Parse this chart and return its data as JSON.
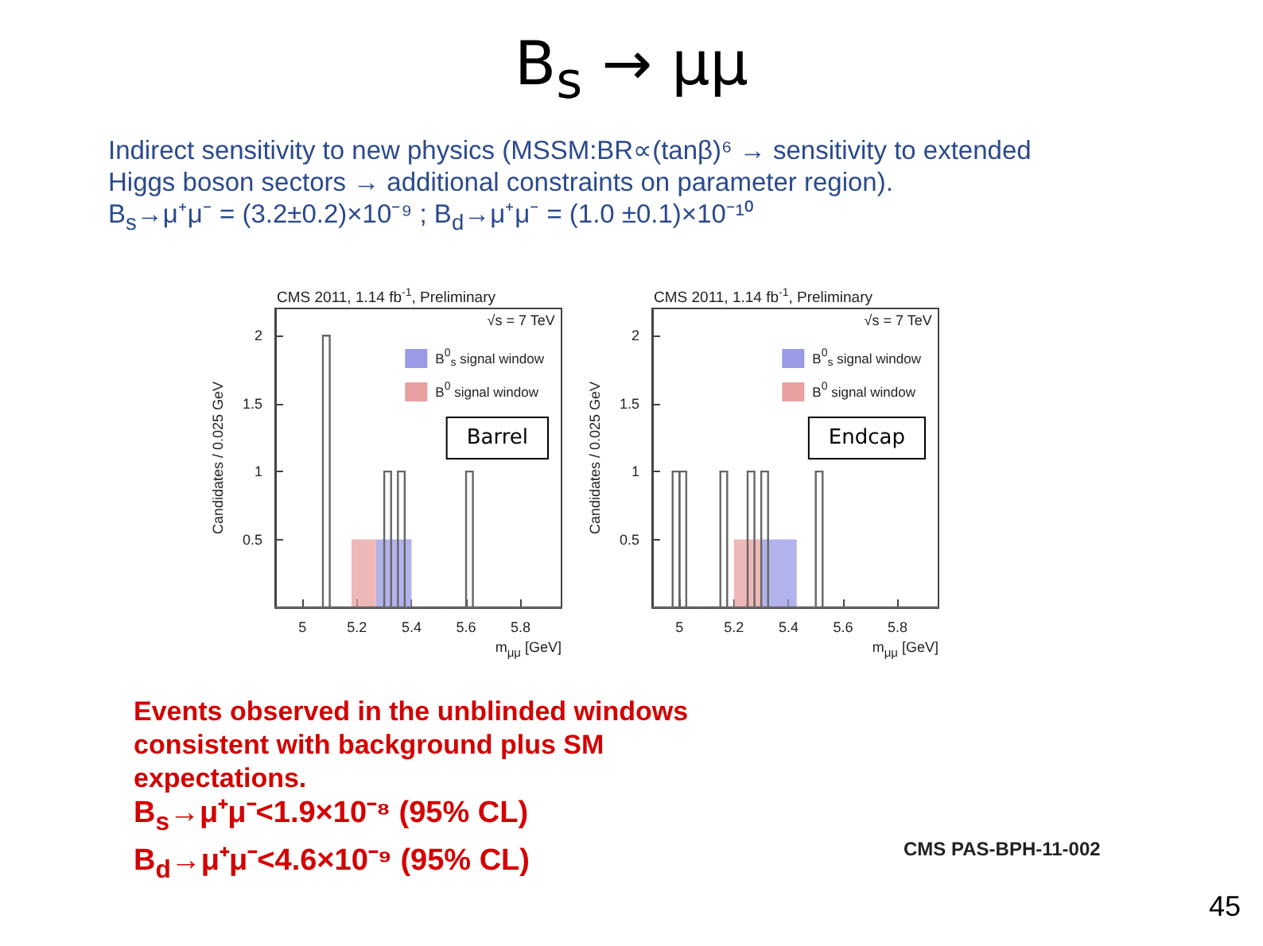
{
  "chart_data": [
    {
      "type": "other",
      "title": "B$_{s}$ → μμ",
      "annotations": [
        "Indirect sensitivity to new physics (MSSM:BR∝(tanβ)⁶ → sensitivity to extended Higgs boson sectors → additional constraints on parameter region).",
        "B$_{s}$→μ⁺μ⁻ = (3.2±0.2)×10⁻⁹ ; B$_{d}$→μ⁺μ⁻ = (1.0 ±0.1)×10⁻¹⁰"
      ]
    },
    {
      "type": "histogram",
      "title": "CMS 2011, 1.14 fb$^{-1}$, Preliminary",
      "xlabel": "m$_{μμ}$ [GeV]",
      "ylabel": "Candidates / 0.025 GeV",
      "annotations": [
        "√s = 7 TeV",
        "Barrel"
      ],
      "xlim": [
        4.9,
        5.95
      ],
      "xticks": [
        5,
        5.2,
        5.4,
        5.6,
        5.8
      ],
      "ylim": [
        0,
        2.2
      ],
      "yticks": [
        0.5,
        1,
        1.5,
        2
      ],
      "legend": "top right",
      "bins": [
        4.9,
        4.925,
        4.95,
        4.975,
        5,
        5.025,
        5.05,
        5.075,
        5.1,
        5.125,
        5.15,
        5.175,
        5.2,
        5.225,
        5.25,
        5.275,
        5.3,
        5.325,
        5.35,
        5.375,
        5.4,
        5.425,
        5.45,
        5.475,
        5.5,
        5.525,
        5.55,
        5.575,
        5.6,
        5.625,
        5.65,
        5.675,
        5.7,
        5.725,
        5.75,
        5.775,
        5.8,
        5.825,
        5.85,
        5.875,
        5.9,
        5.925,
        5.95
      ],
      "series": [
        {
          "color": "#666666",
          "values": [
            0,
            0,
            0,
            0,
            0,
            0,
            0,
            2,
            0,
            0,
            0,
            0,
            0,
            0,
            0,
            0,
            1,
            0,
            1,
            0,
            0,
            0,
            0,
            0,
            0,
            0,
            0,
            0,
            1,
            0,
            0,
            0,
            0,
            0,
            0,
            0,
            0,
            0,
            0,
            0,
            0,
            0
          ]
        },
        {
          "name": "B$^{0}$$_{s}$ signal window",
          "color": "#9a9ae6",
          "bins": [
            5.27,
            5.4
          ],
          "values": [
            0.5
          ]
        },
        {
          "name": "B$^{0}$ signal window",
          "color": "#eaa0a0",
          "bins": [
            5.18,
            5.27
          ],
          "values": [
            0.5
          ]
        }
      ]
    },
    {
      "type": "histogram",
      "title": "CMS 2011, 1.14 fb$^{-1}$, Preliminary",
      "xlabel": "m$_{μμ}$ [GeV]",
      "ylabel": "Candidates / 0.025 GeV",
      "annotations": [
        "√s = 7 TeV",
        "Endcap"
      ],
      "xlim": [
        4.9,
        5.95
      ],
      "xticks": [
        5,
        5.2,
        5.4,
        5.6,
        5.8
      ],
      "ylim": [
        0,
        2.2
      ],
      "yticks": [
        0.5,
        1,
        1.5,
        2
      ],
      "legend": "top right",
      "bins": [
        4.9,
        4.925,
        4.95,
        4.975,
        5,
        5.025,
        5.05,
        5.075,
        5.1,
        5.125,
        5.15,
        5.175,
        5.2,
        5.225,
        5.25,
        5.275,
        5.3,
        5.325,
        5.35,
        5.375,
        5.4,
        5.425,
        5.45,
        5.475,
        5.5,
        5.525,
        5.55,
        5.575,
        5.6,
        5.625,
        5.65,
        5.675,
        5.7,
        5.725,
        5.75,
        5.775,
        5.8,
        5.825,
        5.85,
        5.875,
        5.9,
        5.925,
        5.95
      ],
      "series": [
        {
          "color": "#666666",
          "values": [
            0,
            0,
            0,
            1,
            1,
            0,
            0,
            0,
            0,
            0,
            1,
            0,
            0,
            0,
            1,
            0,
            1,
            0,
            0,
            0,
            0,
            0,
            0,
            0,
            1,
            0,
            0,
            0,
            0,
            0,
            0,
            0,
            0,
            0,
            0,
            0,
            0,
            0,
            0,
            0,
            0,
            0
          ]
        },
        {
          "name": "B$^{0}$$_{s}$ signal window",
          "color": "#9a9ae6",
          "bins": [
            5.3,
            5.43
          ],
          "values": [
            0.5
          ]
        },
        {
          "name": "B$^{0}$ signal window",
          "color": "#eaa0a0",
          "bins": [
            5.2,
            5.3
          ],
          "values": [
            0.5
          ]
        }
      ]
    },
    {
      "type": "other",
      "annotations": [
        "Events observed in the unblinded windows consistent with background plus SM expectations.",
        "B$_{s}$→μ⁺μ⁻<1.9×10⁻⁸  (95% CL)",
        "B$_{d}$→μ⁺μ⁻<4.6×10⁻⁹ (95% CL)",
        "CMS PAS-BPH-11-002",
        "45"
      ]
    }
  ]
}
